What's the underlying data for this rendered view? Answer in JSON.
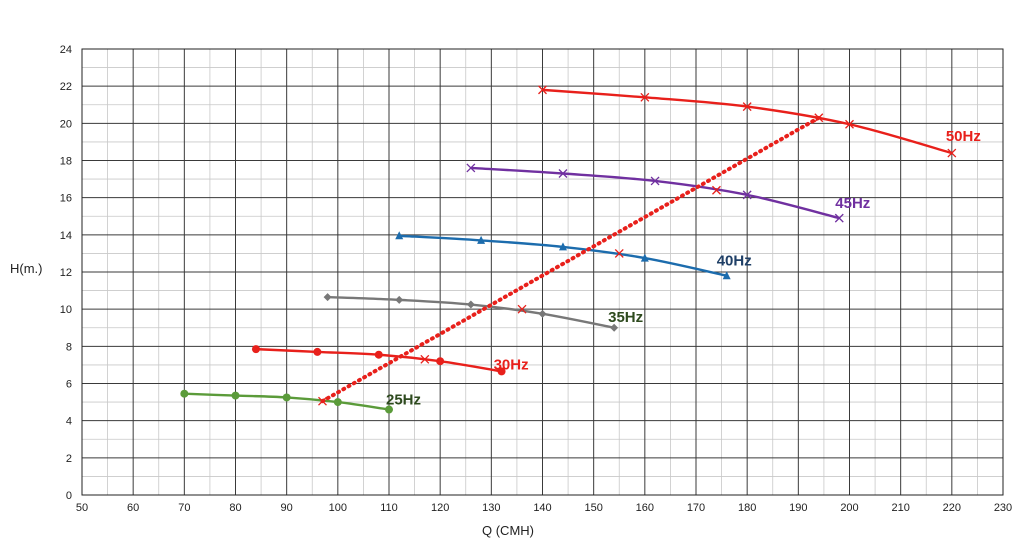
{
  "chart_data": {
    "type": "line",
    "xlabel": "Q (CMH)",
    "ylabel": "H(m.)",
    "xlim": [
      50,
      230
    ],
    "ylim": [
      0,
      24
    ],
    "x_ticks": [
      50,
      60,
      70,
      80,
      90,
      100,
      110,
      120,
      130,
      140,
      150,
      160,
      170,
      180,
      190,
      200,
      210,
      220,
      230
    ],
    "y_ticks": [
      0,
      2,
      4,
      6,
      8,
      10,
      12,
      14,
      16,
      18,
      20,
      22,
      24
    ],
    "grid": true,
    "minor_grid": true,
    "series": [
      {
        "name": "25Hz",
        "color": "#5b9b3a",
        "label_color": "#2e4a1e",
        "marker": "circle",
        "points": [
          [
            70,
            5.45
          ],
          [
            80,
            5.35
          ],
          [
            90,
            5.25
          ],
          [
            100,
            5.0
          ],
          [
            110,
            4.6
          ]
        ]
      },
      {
        "name": "30Hz",
        "color": "#e8201b",
        "label_color": "#e8201b",
        "marker": "circle",
        "points": [
          [
            84,
            7.85
          ],
          [
            96,
            7.7
          ],
          [
            108,
            7.55
          ],
          [
            120,
            7.2
          ],
          [
            132,
            6.65
          ]
        ]
      },
      {
        "name": "35Hz",
        "color": "#787878",
        "label_color": "#2e4a1e",
        "marker": "diamond",
        "points": [
          [
            98,
            10.65
          ],
          [
            112,
            10.5
          ],
          [
            126,
            10.25
          ],
          [
            140,
            9.75
          ],
          [
            154,
            9.0
          ]
        ]
      },
      {
        "name": "40Hz",
        "color": "#1c6cad",
        "label_color": "#1f3f66",
        "marker": "triangle",
        "points": [
          [
            112,
            13.95
          ],
          [
            128,
            13.7
          ],
          [
            144,
            13.35
          ],
          [
            160,
            12.75
          ],
          [
            176,
            11.8
          ]
        ]
      },
      {
        "name": "45Hz",
        "color": "#7030a0",
        "label_color": "#7030a0",
        "marker": "x",
        "points": [
          [
            126,
            17.6
          ],
          [
            144,
            17.3
          ],
          [
            162,
            16.9
          ],
          [
            180,
            16.15
          ],
          [
            198,
            14.9
          ]
        ]
      },
      {
        "name": "50Hz",
        "color": "#e8201b",
        "label_color": "#e8201b",
        "marker": "x",
        "points": [
          [
            140,
            21.8
          ],
          [
            160,
            21.4
          ],
          [
            180,
            20.9
          ],
          [
            200,
            19.95
          ],
          [
            220,
            18.4
          ]
        ]
      }
    ],
    "dotted_line": {
      "color": "#e8201b",
      "marker": "x",
      "points": [
        [
          97,
          5.05
        ],
        [
          117,
          7.3
        ],
        [
          136,
          10.0
        ],
        [
          155,
          13.0
        ],
        [
          174,
          16.4
        ],
        [
          194,
          20.3
        ]
      ]
    }
  }
}
